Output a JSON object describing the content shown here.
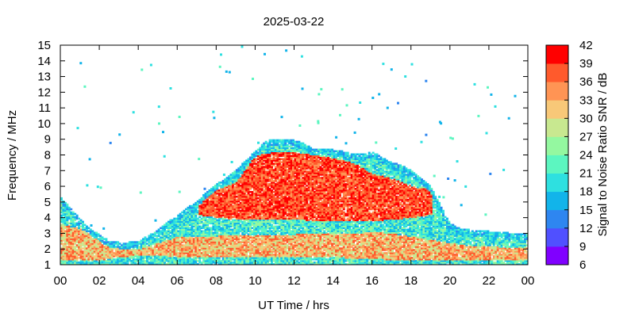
{
  "chart_data": {
    "type": "heatmap",
    "title": "2025-03-22",
    "xlabel": "UT Time / hrs",
    "ylabel": "Frequency / MHz",
    "colorbar_label": "Signal to Noise Ratio SNR / dB",
    "xlim": [
      0,
      24
    ],
    "ylim": [
      1,
      15
    ],
    "x_ticks": [
      "00",
      "02",
      "04",
      "06",
      "08",
      "10",
      "12",
      "14",
      "16",
      "18",
      "20",
      "22",
      "00"
    ],
    "y_ticks": [
      "1",
      "2",
      "3",
      "4",
      "5",
      "6",
      "7",
      "8",
      "9",
      "10",
      "11",
      "12",
      "13",
      "14",
      "15"
    ],
    "colorbar_ticks": [
      "6",
      "9",
      "12",
      "15",
      "18",
      "21",
      "24",
      "27",
      "30",
      "33",
      "36",
      "39",
      "42"
    ],
    "colorbar_range": [
      6,
      42
    ],
    "colorbar_colors": [
      "#8000ff",
      "#5050ff",
      "#2e86f0",
      "#12b4ea",
      "#2ee0e0",
      "#5cf6c0",
      "#94f8a0",
      "#c8e890",
      "#f8c878",
      "#ff9454",
      "#ff5a2c",
      "#ff0000"
    ],
    "grid": false,
    "envelope_upper_mhz": {
      "hours": [
        0,
        0.5,
        1,
        1.5,
        2,
        2.5,
        3,
        3.5,
        4,
        4.5,
        5,
        5.5,
        6,
        6.5,
        7,
        7.5,
        8,
        8.5,
        9,
        9.5,
        10,
        10.5,
        11,
        11.5,
        12,
        12.5,
        13,
        13.5,
        14,
        14.5,
        15,
        15.5,
        16,
        16.5,
        17,
        17.5,
        18,
        18.5,
        19,
        19.5,
        20,
        20.5,
        21,
        21.5,
        22,
        22.5,
        23,
        23.5,
        24
      ],
      "values": [
        5.3,
        4.6,
        3.9,
        3.3,
        2.9,
        2.5,
        2.4,
        2.4,
        2.5,
        2.8,
        3.2,
        3.7,
        4.1,
        4.6,
        5.0,
        5.6,
        6.1,
        6.5,
        7.0,
        7.6,
        8.2,
        8.8,
        9.0,
        8.9,
        8.9,
        8.7,
        8.3,
        8.3,
        8.3,
        8.2,
        8.0,
        8.0,
        8.2,
        7.8,
        7.5,
        7.3,
        7.0,
        6.5,
        6.0,
        4.8,
        3.6,
        3.3,
        3.2,
        3.2,
        3.1,
        3.1,
        3.0,
        3.0,
        3.0
      ]
    },
    "core_band_mhz": {
      "hours": [
        7,
        8,
        9,
        10,
        11,
        12,
        13,
        14,
        15,
        16,
        17,
        18,
        19
      ],
      "lower": [
        4.2,
        4.0,
        3.9,
        3.9,
        3.9,
        3.9,
        3.8,
        3.8,
        3.8,
        3.8,
        3.9,
        4.0,
        4.2
      ],
      "upper": [
        5.0,
        5.8,
        6.3,
        8.0,
        8.2,
        8.2,
        8.0,
        7.8,
        7.5,
        6.8,
        6.5,
        6.0,
        5.8
      ]
    },
    "low_band_mhz": {
      "hours": [
        0,
        1,
        2,
        3,
        4,
        5,
        6,
        14,
        15,
        16,
        17,
        18,
        19,
        20,
        21,
        22,
        23,
        24
      ],
      "lower": [
        1.3,
        1.3,
        1.3,
        1.5,
        1.6,
        1.6,
        1.5,
        1.5,
        1.4,
        1.4,
        1.3,
        1.3,
        1.3,
        1.3,
        1.3,
        1.3,
        1.3,
        1.3
      ],
      "upper": [
        3.6,
        3.3,
        2.6,
        2.1,
        2.0,
        2.4,
        2.8,
        3.0,
        3.0,
        3.1,
        3.0,
        2.8,
        2.6,
        2.4,
        2.2,
        2.2,
        2.1,
        2.1
      ]
    }
  }
}
